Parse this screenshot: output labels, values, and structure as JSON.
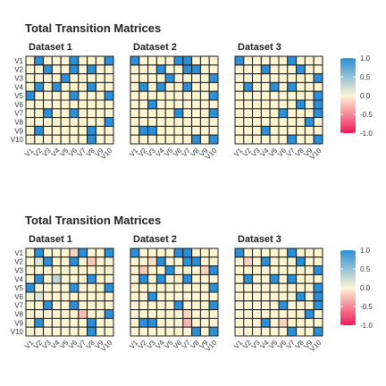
{
  "chart_data": [
    {
      "type": "heatmap",
      "title": "Total Transition Matrices",
      "labels": [
        "V1",
        "V2",
        "V3",
        "V4",
        "V5",
        "V6",
        "V7",
        "V8",
        "V9",
        "V10"
      ],
      "legend": {
        "ticks": [
          1.0,
          0.5,
          0.0,
          -0.5,
          -1.0
        ],
        "tick_labels": [
          "1.0",
          "0.5",
          "0.0",
          "-0.5",
          "-1.0"
        ],
        "placement": "right"
      },
      "colorscale": {
        "low": "#f01a5a",
        "mid": "#fdf5d2",
        "high": "#2a8fd6",
        "range": [
          -1,
          1
        ]
      },
      "panels": [
        {
          "name": "Dataset 1",
          "matrix": [
            [
              0,
              1,
              0,
              0,
              0,
              1,
              0,
              0,
              0,
              1
            ],
            [
              0,
              0,
              1,
              0,
              0,
              1,
              0,
              1,
              0,
              0
            ],
            [
              0,
              0,
              0,
              0,
              1,
              0,
              0,
              0,
              0,
              0
            ],
            [
              0,
              1,
              0,
              1,
              0,
              0,
              0,
              1,
              0,
              0
            ],
            [
              1,
              0,
              0,
              0,
              0,
              1,
              0,
              0,
              0,
              1
            ],
            [
              0,
              0,
              0,
              0,
              0,
              0,
              0,
              0,
              0,
              0
            ],
            [
              0,
              0,
              1,
              0,
              0,
              1,
              0,
              0,
              0,
              0
            ],
            [
              0,
              0,
              0,
              0,
              0,
              0,
              0,
              0,
              0,
              1
            ],
            [
              0,
              1,
              0,
              0,
              0,
              0,
              0,
              1,
              0,
              0
            ],
            [
              0,
              0,
              0,
              0,
              0,
              0,
              0,
              1,
              0,
              0
            ]
          ]
        },
        {
          "name": "Dataset 2",
          "matrix": [
            [
              1,
              0,
              0,
              0,
              0,
              1,
              1,
              0,
              0,
              0
            ],
            [
              0,
              0,
              0,
              1,
              0,
              0,
              1,
              1,
              0,
              0
            ],
            [
              0,
              0,
              0,
              0,
              1,
              0,
              0,
              0,
              0,
              1
            ],
            [
              0,
              1,
              0,
              1,
              0,
              0,
              1,
              0,
              0,
              0
            ],
            [
              0,
              0,
              0,
              0,
              0,
              0,
              0,
              0,
              0,
              1
            ],
            [
              0,
              0,
              1,
              0,
              0,
              0,
              0,
              0,
              0,
              0
            ],
            [
              0,
              0,
              0,
              0,
              0,
              1,
              0,
              0,
              0,
              1
            ],
            [
              0,
              0,
              0,
              0,
              0,
              0,
              0,
              0,
              0,
              0
            ],
            [
              0,
              1,
              1,
              0,
              0,
              0,
              0,
              0,
              0,
              0
            ],
            [
              0,
              0,
              0,
              0,
              0,
              0,
              0,
              1,
              0,
              1
            ]
          ]
        },
        {
          "name": "Dataset 3",
          "matrix": [
            [
              1,
              0,
              0,
              0,
              0,
              0,
              1,
              0,
              0,
              0
            ],
            [
              0,
              0,
              0,
              1,
              0,
              0,
              0,
              1,
              0,
              0
            ],
            [
              0,
              0,
              0,
              0,
              0,
              0,
              0,
              0,
              0,
              1
            ],
            [
              0,
              1,
              0,
              0,
              1,
              0,
              1,
              0,
              0,
              0
            ],
            [
              0,
              0,
              0,
              0,
              0,
              0,
              0,
              0,
              0,
              1
            ],
            [
              0,
              0,
              0,
              0,
              0,
              0,
              0,
              1,
              0,
              1
            ],
            [
              0,
              0,
              0,
              0,
              0,
              1,
              0,
              0,
              0,
              1
            ],
            [
              0,
              0,
              0,
              0,
              0,
              0,
              0,
              0,
              1,
              0
            ],
            [
              0,
              0,
              0,
              1,
              0,
              0,
              0,
              0,
              0,
              0
            ],
            [
              0,
              0,
              0,
              0,
              0,
              0,
              1,
              0,
              0,
              1
            ]
          ]
        }
      ]
    },
    {
      "type": "heatmap",
      "title": "Total Transition Matrices",
      "labels": [
        "V1",
        "V2",
        "V3",
        "V4",
        "V5",
        "V6",
        "V7",
        "V8",
        "V9",
        "V10"
      ],
      "legend": {
        "ticks": [
          1.0,
          0.5,
          0.0,
          -0.5,
          -1.0
        ],
        "tick_labels": [
          "1.0",
          "0.5",
          "0.0",
          "-0.5",
          "-1.0"
        ],
        "placement": "right"
      },
      "colorscale": {
        "low": "#f01a5a",
        "mid": "#fdf5d2",
        "high": "#2a8fd6",
        "range": [
          -1,
          1
        ]
      },
      "panels": [
        {
          "name": "Dataset 1",
          "matrix": [
            [
              0,
              1,
              0,
              0,
              0,
              -0.15,
              1,
              0,
              0,
              1
            ],
            [
              0,
              0.15,
              1,
              0,
              0,
              1,
              0,
              -0.2,
              0,
              0
            ],
            [
              0,
              0,
              0,
              0,
              0,
              0,
              0,
              0,
              0,
              0
            ],
            [
              0,
              1,
              0,
              0.3,
              0,
              0,
              0,
              1,
              0,
              0
            ],
            [
              1,
              0,
              0,
              0,
              0,
              1,
              0,
              0,
              0,
              1
            ],
            [
              0,
              0.15,
              0,
              0,
              0,
              0,
              0,
              0,
              0,
              0
            ],
            [
              0,
              0,
              1,
              0,
              0,
              1,
              0,
              0,
              0,
              0
            ],
            [
              0,
              0,
              0,
              0,
              0,
              0,
              -0.25,
              0,
              0,
              1
            ],
            [
              0,
              1,
              0,
              0,
              0,
              0,
              0,
              1,
              0,
              0
            ],
            [
              0,
              0,
              0,
              0,
              0,
              0,
              0,
              1,
              0,
              0
            ]
          ]
        },
        {
          "name": "Dataset 2",
          "matrix": [
            [
              1,
              0,
              0,
              0,
              0,
              1,
              1,
              0,
              0,
              0
            ],
            [
              0,
              0,
              -0.1,
              1,
              0,
              0,
              1,
              1,
              0,
              0
            ],
            [
              0,
              -0.2,
              0,
              0,
              1,
              0,
              0,
              0,
              -0.15,
              1
            ],
            [
              0,
              1,
              0,
              1,
              0,
              0,
              1,
              0,
              0,
              0
            ],
            [
              0,
              0,
              0,
              0,
              0,
              0,
              0,
              0,
              0,
              1
            ],
            [
              0,
              0,
              1,
              0,
              0,
              0,
              0,
              0,
              0,
              0
            ],
            [
              0,
              0,
              0,
              0,
              0,
              1,
              0,
              0,
              0,
              1
            ],
            [
              0,
              0,
              0,
              0,
              0,
              0,
              -0.15,
              0,
              0,
              0
            ],
            [
              0,
              1,
              1,
              0,
              0,
              0,
              -0.3,
              0,
              0,
              0
            ],
            [
              0,
              0,
              0,
              0,
              0,
              0,
              0,
              1,
              0,
              1
            ]
          ]
        },
        {
          "name": "Dataset 3",
          "matrix": [
            [
              1,
              0,
              0,
              0,
              0,
              0,
              1,
              0,
              0,
              0
            ],
            [
              0,
              -0.15,
              0,
              1,
              0,
              0,
              0,
              1,
              0,
              0
            ],
            [
              0,
              0,
              0,
              0,
              0,
              0,
              0,
              0,
              0,
              1
            ],
            [
              0,
              1,
              0,
              0,
              1,
              0,
              1,
              0,
              0,
              0
            ],
            [
              0,
              0,
              0,
              0,
              0,
              0,
              0,
              0,
              0,
              1
            ],
            [
              0,
              0,
              0,
              0,
              0,
              0,
              0,
              1,
              0,
              1
            ],
            [
              0,
              0,
              0,
              0,
              0,
              1,
              0,
              0,
              0,
              1
            ],
            [
              0,
              0,
              0,
              0,
              0,
              0,
              0,
              0,
              1,
              0
            ],
            [
              0,
              0,
              0,
              1,
              0,
              -0.15,
              0,
              0,
              0,
              0
            ],
            [
              0,
              0,
              0,
              0,
              0,
              0,
              1,
              0,
              0,
              1
            ]
          ]
        }
      ]
    }
  ]
}
